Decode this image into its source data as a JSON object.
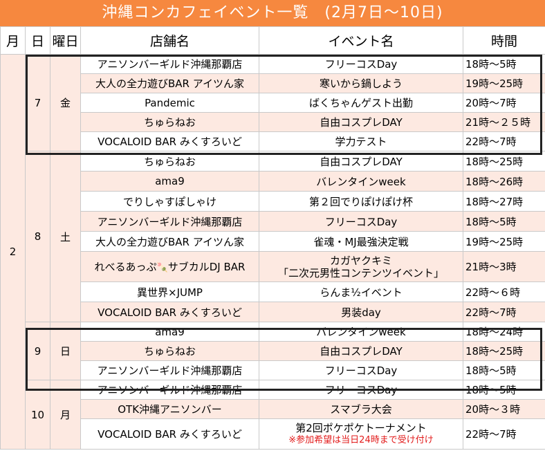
{
  "title": "沖縄コンカフェイベント一覧　(2月7日～10日)",
  "headers": {
    "month": "月",
    "day": "日",
    "weekday": "曜日",
    "shop": "店舗名",
    "event": "イベント名",
    "time": "時間"
  },
  "month": "2",
  "days": [
    {
      "day": "7",
      "weekday": "金",
      "rows": [
        {
          "shop": "アニソンバーギルド沖縄那覇店",
          "event": "フリーコスDay",
          "time": "18時～5時"
        },
        {
          "shop": "大人の全力遊びBAR アイツん家",
          "event": "寒いから鍋しよう",
          "time": "19時～25時"
        },
        {
          "shop": "Pandemic",
          "event": "ばくちゃんゲスト出勤",
          "time": "20時～7時"
        },
        {
          "shop": "ちゅらねお",
          "event": "自由コスプレDAY",
          "time": "21時～２５時"
        },
        {
          "shop": "VOCALOID BAR みくすろいど",
          "event": "学力テスト",
          "time": "22時～7時"
        }
      ]
    },
    {
      "day": "8",
      "weekday": "土",
      "rows": [
        {
          "shop": "ちゅらねお",
          "event": "自由コスプレDAY",
          "time": "18時～25時"
        },
        {
          "shop": "ama9",
          "event": "バレンタインweek",
          "time": "18時～26時"
        },
        {
          "shop": "でりしゃすぽしゃけ",
          "event": "第２回でりぽけぽけ杯",
          "time": "18時～27時"
        },
        {
          "shop": "アニソンバーギルド沖縄那覇店",
          "event": "フリーコスDay",
          "time": "18時～5時"
        },
        {
          "shop": "大人の全力遊びBAR アイツん家",
          "event": "雀魂・MJ最強決定戦",
          "time": "19時～25時"
        },
        {
          "shop": "れべるあっぷ",
          "shop_icon": "🍡",
          "shop_suffix": "サブカルDJ BAR",
          "event": "カガヤクキミ",
          "event_line2": "「二次元男性コンテンツイベント」",
          "time": "21時～3時"
        },
        {
          "shop": "異世界×JUMP",
          "event": "らんま½イベント",
          "time": "22時～６時"
        },
        {
          "shop": "VOCALOID BAR みくすろいど",
          "event": "男装day",
          "time": "22時～7時"
        }
      ]
    },
    {
      "day": "9",
      "weekday": "日",
      "rows": [
        {
          "shop": "ama9",
          "event": "バレンタインweek",
          "time": "18時～24時"
        },
        {
          "shop": "ちゅらねお",
          "event": "自由コスプレDAY",
          "time": "18時～25時"
        },
        {
          "shop": "アニソンバーギルド沖縄那覇店",
          "event": "フリーコスDay",
          "time": "18時～5時"
        }
      ]
    },
    {
      "day": "10",
      "weekday": "月",
      "rows": [
        {
          "shop": "アニソンバーギルド沖縄那覇店",
          "event": "フリーコスDay",
          "time": "18時～5時"
        },
        {
          "shop": "OTK沖縄アニソンバー",
          "event": "スマブラ大会",
          "time": "20時～３時"
        },
        {
          "shop": "VOCALOID BAR みくすろいど",
          "event": "第2回ポケポケトーナメント",
          "event_note": "※参加希望は当日24時まで受け付け",
          "time": "22時～7時"
        }
      ]
    }
  ],
  "colors": {
    "banner": "#f6883f",
    "row_tint": "#fde9e1",
    "grid": "#c9c9c9",
    "box": "#222222",
    "note": "#e21b1b"
  }
}
